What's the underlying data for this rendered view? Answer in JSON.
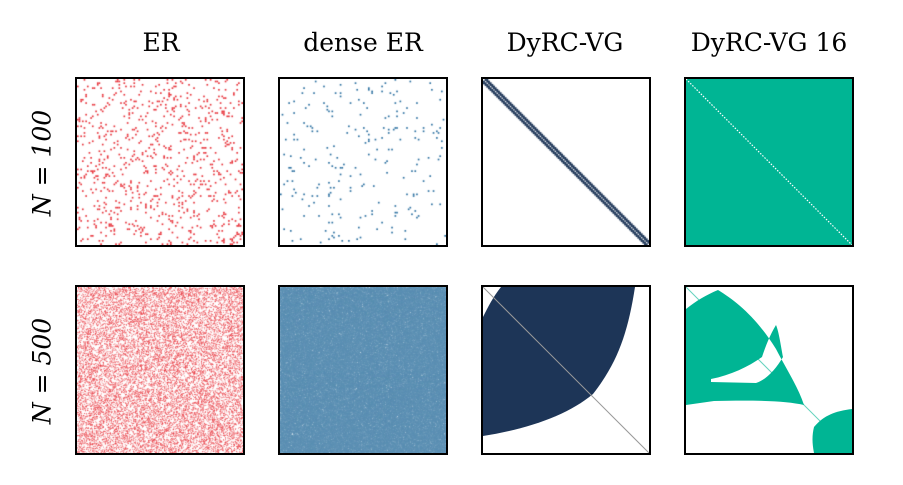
{
  "columns": [
    {
      "title": "ER"
    },
    {
      "title": "dense ER"
    },
    {
      "title": "DyRC-VG"
    },
    {
      "title": "DyRC-VG 16"
    }
  ],
  "rows": [
    {
      "label": "N = 100"
    },
    {
      "label": "N = 500"
    }
  ],
  "colors": {
    "er": "#e8343c",
    "dense_er": "#2a6fa0",
    "dyrc_vg": "#1d3557",
    "dyrc_vg16": "#00b594",
    "diagonal_line": "#999999"
  },
  "matrices": {
    "er_100_density": 0.08,
    "dense_er_100_density": 0.02,
    "er_500_density": 0.06,
    "dense_er_500_density": 0.5
  }
}
